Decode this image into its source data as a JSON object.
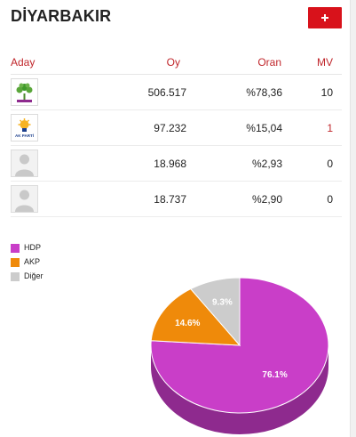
{
  "header": {
    "title": "DİYARBAKIR"
  },
  "table": {
    "columns": {
      "aday": "Aday",
      "oy": "Oy",
      "oran": "Oran",
      "mv": "MV"
    },
    "rows": [
      {
        "party": "HDP",
        "oy": "506.517",
        "oran": "%78,36",
        "mv": "10",
        "mv_color": "#222222",
        "avatar": "hdp-logo-icon"
      },
      {
        "party": "AKP",
        "oy": "97.232",
        "oran": "%15,04",
        "mv": "1",
        "mv_color": "#c0262b",
        "avatar": "akp-logo-icon",
        "avatar_text": "AK PARTİ"
      },
      {
        "party": "",
        "oy": "18.968",
        "oran": "%2,93",
        "mv": "0",
        "mv_color": "#222222",
        "avatar": "person-silhouette-icon"
      },
      {
        "party": "",
        "oy": "18.737",
        "oran": "%2,90",
        "mv": "0",
        "mv_color": "#222222",
        "avatar": "person-silhouette-icon"
      }
    ]
  },
  "chart_data": {
    "type": "pie",
    "legend_position": "top-left",
    "categories": [
      "HDP",
      "AKP",
      "Diğer"
    ],
    "values": [
      76.1,
      14.6,
      9.3
    ],
    "labels": [
      "76.1%",
      "14.6%",
      "9.3%"
    ],
    "colors": [
      "#c93ec8",
      "#ef8a0a",
      "#cccccc"
    ],
    "side_colors": [
      "#8e2a8e",
      "#b06507",
      "#9a9a9a"
    ]
  }
}
